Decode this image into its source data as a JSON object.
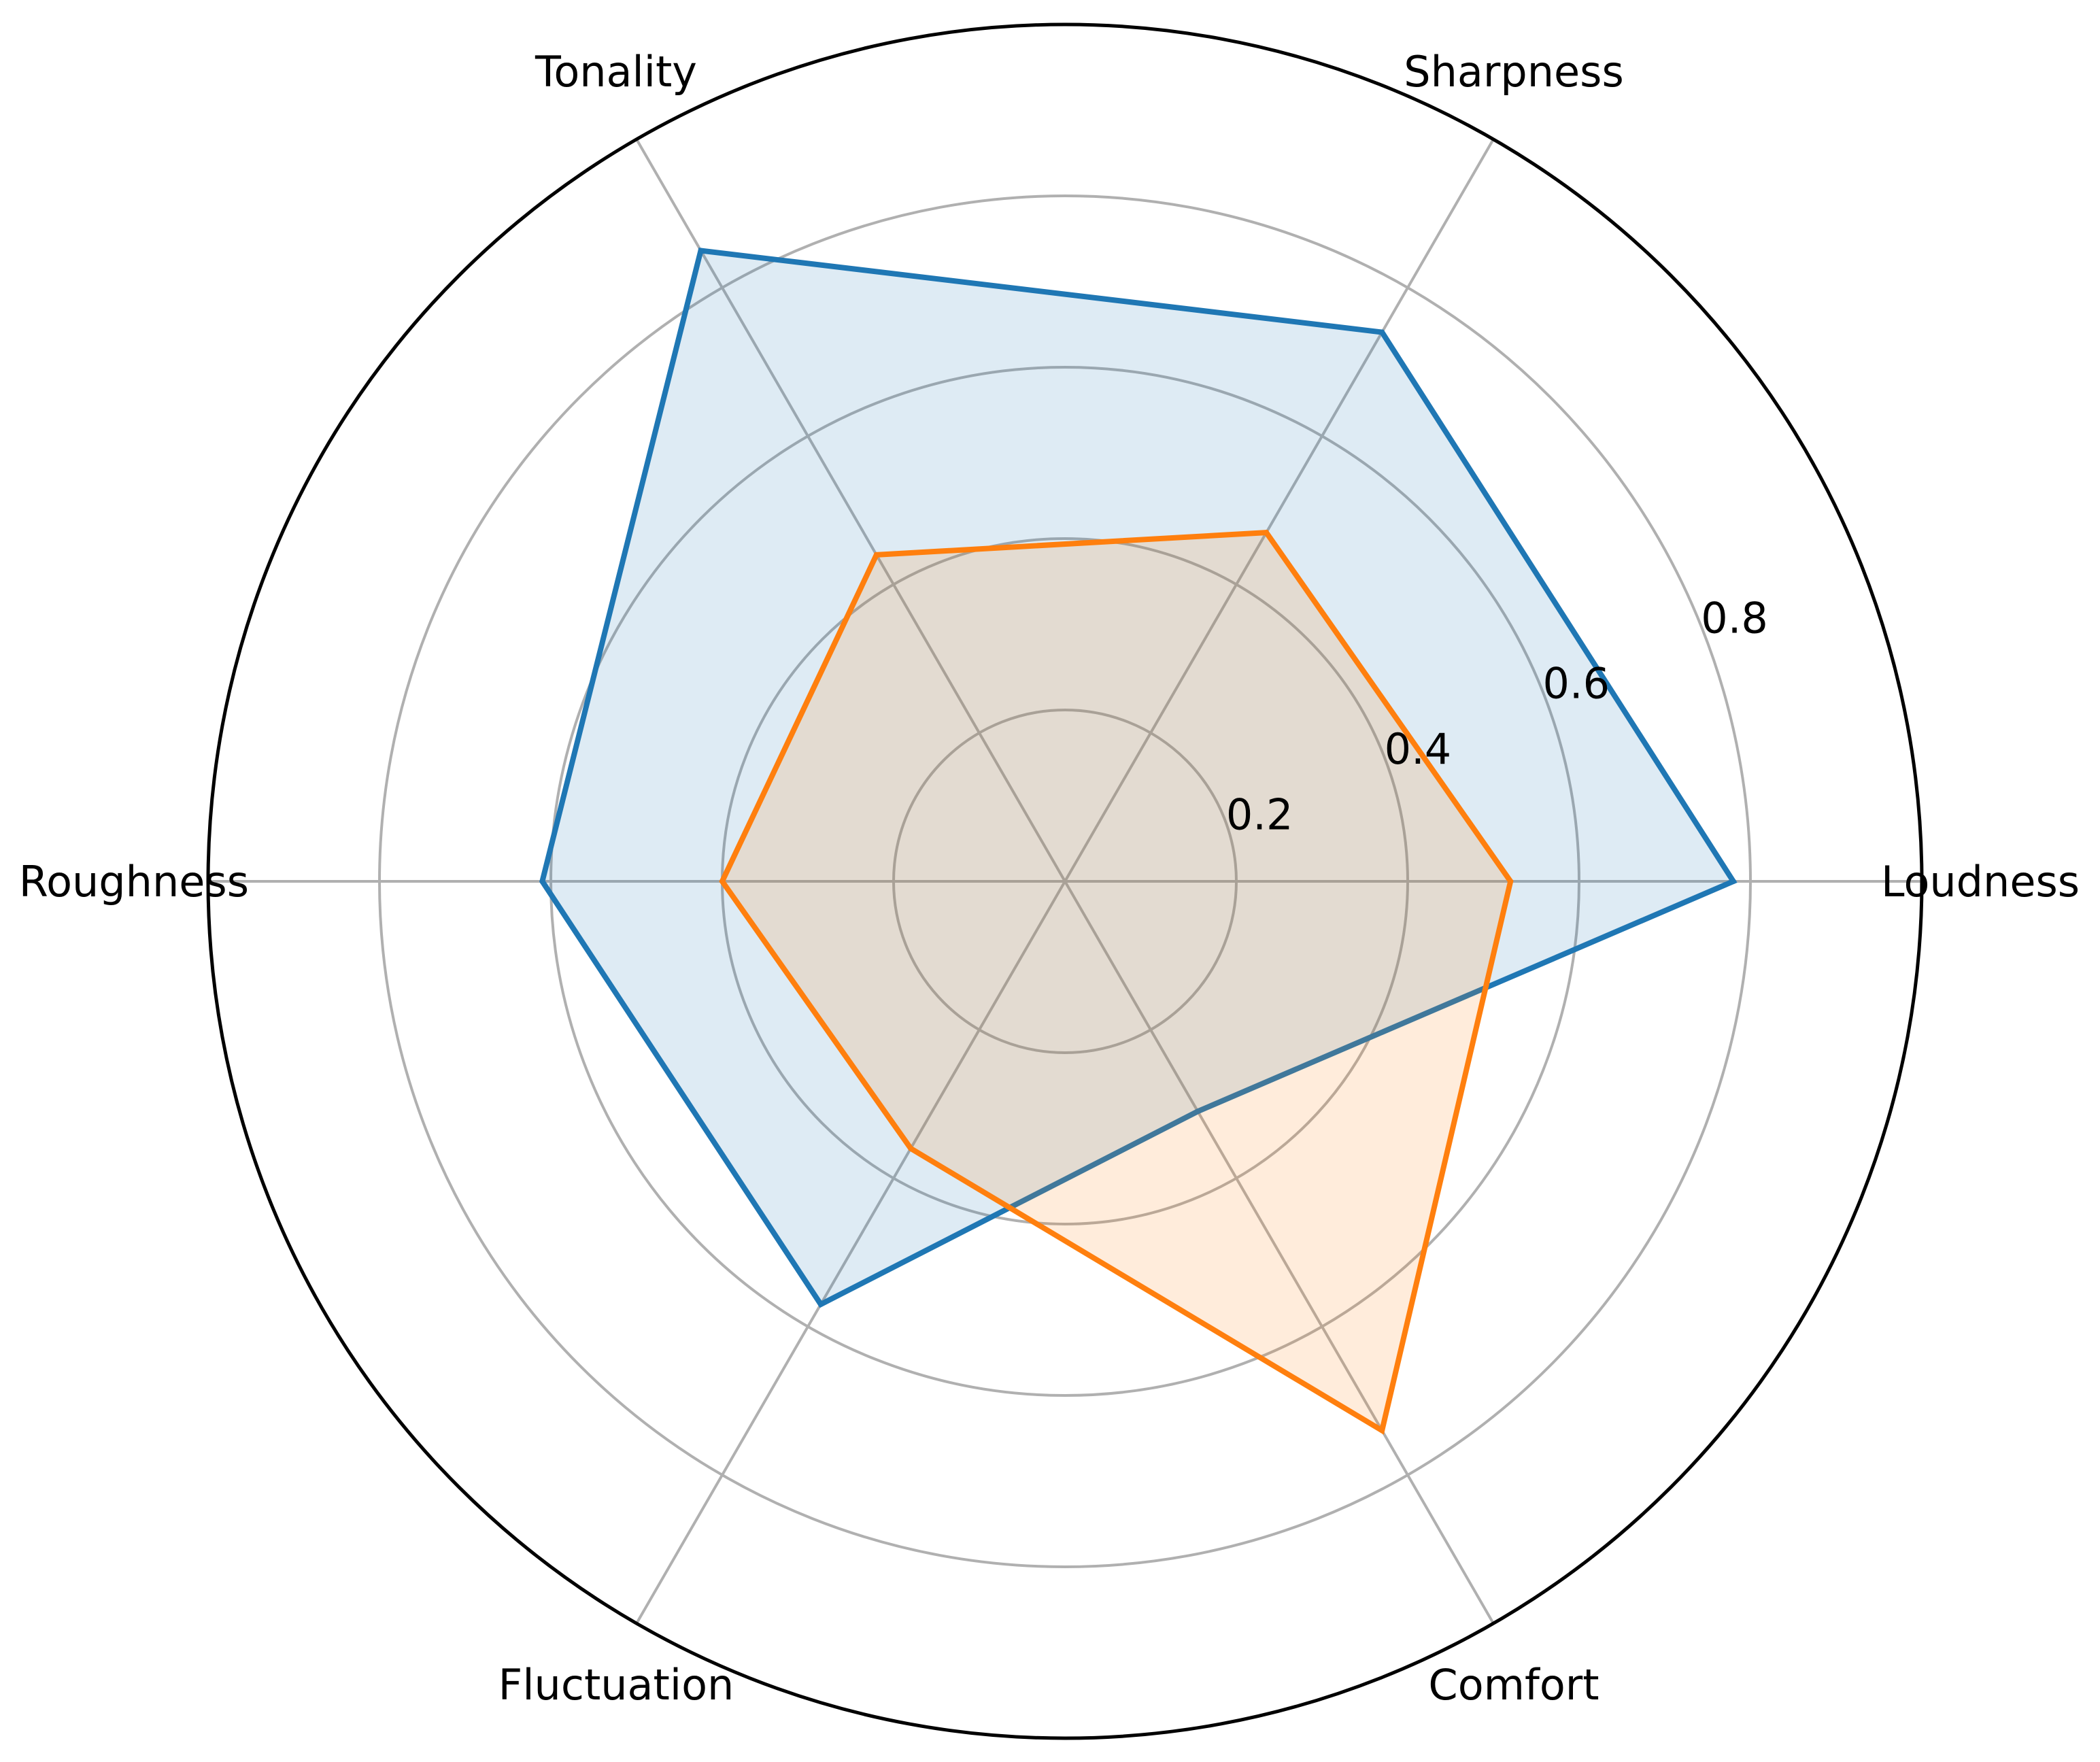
{
  "chart_data": {
    "type": "radar",
    "categories": [
      "Loudness",
      "Sharpness",
      "Tonality",
      "Roughness",
      "Fluctuation",
      "Comfort"
    ],
    "series": [
      {
        "values": [
          0.78,
          0.74,
          0.85,
          0.61,
          0.57,
          0.31
        ],
        "color": "#1f77b4",
        "fill": "#1f77b4",
        "fill_opacity": 0.15
      },
      {
        "values": [
          0.52,
          0.47,
          0.44,
          0.4,
          0.36,
          0.74
        ],
        "color": "#ff7f0e",
        "fill": "#ff7f0e",
        "fill_opacity": 0.15
      }
    ],
    "rlim": [
      0,
      1.0
    ],
    "rticks": [
      0.2,
      0.4,
      0.6,
      0.8
    ],
    "rtick_labels": [
      "0.2",
      "0.4",
      "0.6",
      "0.8"
    ],
    "grid": true,
    "grid_color": "#b0b0b0",
    "outer_circle_color": "#000000"
  }
}
